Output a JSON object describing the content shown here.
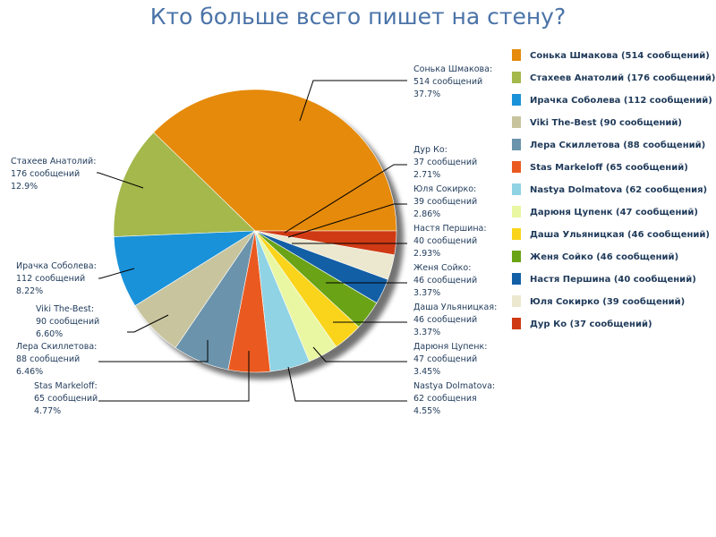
{
  "chart_data": {
    "type": "pie",
    "title": "Кто больше всего пишет на стену?",
    "unit": "сообщений",
    "legend_position": "right",
    "slices": [
      {
        "name": "Сонька Шмакова",
        "value": 514,
        "percent": "37.7%",
        "color": "#e58a0b",
        "label_value": "514 сообщений",
        "legend": "Сонька Шмакова (514 сообщений)"
      },
      {
        "name": "Стахеев Анатолий",
        "value": 176,
        "percent": "12.9%",
        "color": "#a4b84c",
        "label_value": "176 сообщений",
        "legend": "Стахеев Анатолий (176 сообщений)"
      },
      {
        "name": "Ирачка Соболева",
        "value": 112,
        "percent": "8.22%",
        "color": "#1a92d9",
        "label_value": "112 сообщений",
        "legend": "Ирачка Соболева (112 сообщений)"
      },
      {
        "name": "Viki The-Best",
        "value": 90,
        "percent": "6.60%",
        "color": "#c8c49e",
        "label_value": "90 сообщений",
        "legend": "Viki The-Best (90 сообщений)"
      },
      {
        "name": "Лера Скиллетова",
        "value": 88,
        "percent": "6.46%",
        "color": "#6b93ab",
        "label_value": "88 сообщений",
        "legend": "Лера Скиллетова (88 сообщений)"
      },
      {
        "name": "Stas Markeloff",
        "value": 65,
        "percent": "4.77%",
        "color": "#ea5a20",
        "label_value": "65 сообщений",
        "legend": "Stas Markeloff (65 сообщений)"
      },
      {
        "name": "Nastya Dolmatova",
        "value": 62,
        "percent": "4.55%",
        "color": "#8fd3e4",
        "label_value": "62 сообщения",
        "legend": "Nastya Dolmatova (62 сообщения)"
      },
      {
        "name": "Дарюня Цупенк",
        "value": 47,
        "percent": "3.45%",
        "color": "#e9f7a3",
        "label_value": "47 сообщений",
        "legend": "Дарюня Цупенк (47 сообщений)"
      },
      {
        "name": "Даша Ульяницкая",
        "value": 46,
        "percent": "3.37%",
        "color": "#f9d41a",
        "label_value": "46 сообщений",
        "legend": "Даша Ульяницкая (46 сообщений)"
      },
      {
        "name": "Женя Сойко",
        "value": 46,
        "percent": "3.37%",
        "color": "#6aa316",
        "label_value": "46 сообщений",
        "legend": "Женя Сойко (46 сообщений)"
      },
      {
        "name": "Настя Першина",
        "value": 40,
        "percent": "2.93%",
        "color": "#135fa6",
        "label_value": "40 сообщений",
        "legend": "Настя Першина (40 сообщений)"
      },
      {
        "name": "Юля Сокирко",
        "value": 39,
        "percent": "2.86%",
        "color": "#ece8cf",
        "label_value": "39 сообщений",
        "legend": "Юля Сокирко (39 сообщений)"
      },
      {
        "name": "Дур Ко",
        "value": 37,
        "percent": "2.71%",
        "color": "#cf3a14",
        "label_value": "37 сообщений",
        "legend": "Дур Ко (37 сообщений)"
      }
    ]
  }
}
